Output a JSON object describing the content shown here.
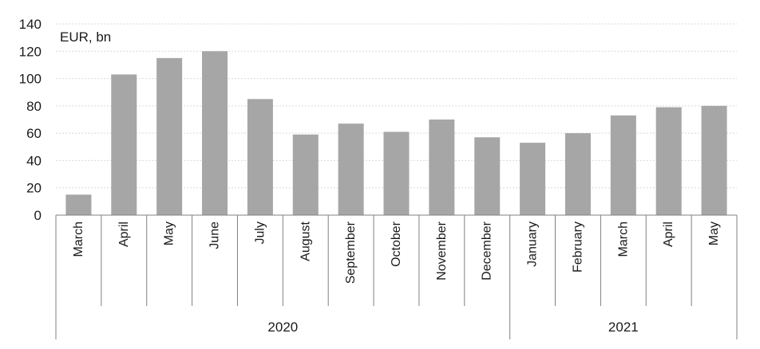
{
  "chart_data": {
    "type": "bar",
    "title": "",
    "xlabel": "",
    "ylabel": "EUR, bn",
    "ylim": [
      0,
      140
    ],
    "yticks": [
      0,
      20,
      40,
      60,
      80,
      100,
      120,
      140
    ],
    "grid": true,
    "categories": [
      "March",
      "April",
      "May",
      "June",
      "July",
      "August",
      "September",
      "October",
      "November",
      "December",
      "January",
      "February",
      "March",
      "April",
      "May"
    ],
    "values": [
      15,
      103,
      115,
      120,
      85,
      59,
      67,
      61,
      70,
      57,
      53,
      60,
      73,
      79,
      80
    ],
    "groups": [
      {
        "label": "2020",
        "count": 10
      },
      {
        "label": "2021",
        "count": 5
      }
    ],
    "colors": {
      "bar": "#a6a6a6",
      "grid": "#d9d9d9",
      "axis": "#808080"
    }
  }
}
